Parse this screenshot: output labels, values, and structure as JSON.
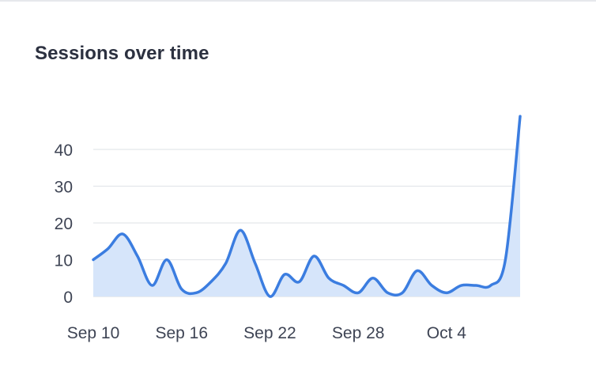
{
  "card": {
    "title": "Sessions over time"
  },
  "chart_data": {
    "type": "area",
    "title": "Sessions over time",
    "xlabel": "",
    "ylabel": "",
    "x_ticks": [
      "Sep 10",
      "Sep 16",
      "Sep 22",
      "Sep 28",
      "Oct 4"
    ],
    "x_start": "Sep 10",
    "x_end": "Oct 9",
    "y_ticks": [
      0,
      10,
      20,
      30,
      40
    ],
    "ylim": [
      0,
      48
    ],
    "grid": true,
    "colors": {
      "line": "#3b7de0",
      "fill": "#d6e5fa",
      "grid": "#e3e6ea"
    },
    "series": [
      {
        "x": [
          "Sep 10",
          "Sep 11",
          "Sep 12",
          "Sep 13",
          "Sep 14",
          "Sep 15",
          "Sep 16",
          "Sep 17",
          "Sep 18",
          "Sep 19",
          "Sep 20",
          "Sep 21",
          "Sep 22",
          "Sep 23",
          "Sep 24",
          "Sep 25",
          "Sep 26",
          "Sep 27",
          "Sep 28",
          "Sep 29",
          "Sep 30",
          "Oct 1",
          "Oct 2",
          "Oct 3",
          "Oct 4",
          "Oct 5",
          "Oct 6",
          "Oct 7",
          "Oct 8",
          "Oct 9"
        ],
        "values": [
          10,
          13,
          17,
          11,
          3,
          10,
          2,
          1,
          4,
          9,
          18,
          9,
          0,
          6,
          4,
          11,
          5,
          3,
          1,
          5,
          1,
          1,
          7,
          3,
          1,
          3,
          3,
          3,
          10,
          49
        ]
      }
    ]
  }
}
